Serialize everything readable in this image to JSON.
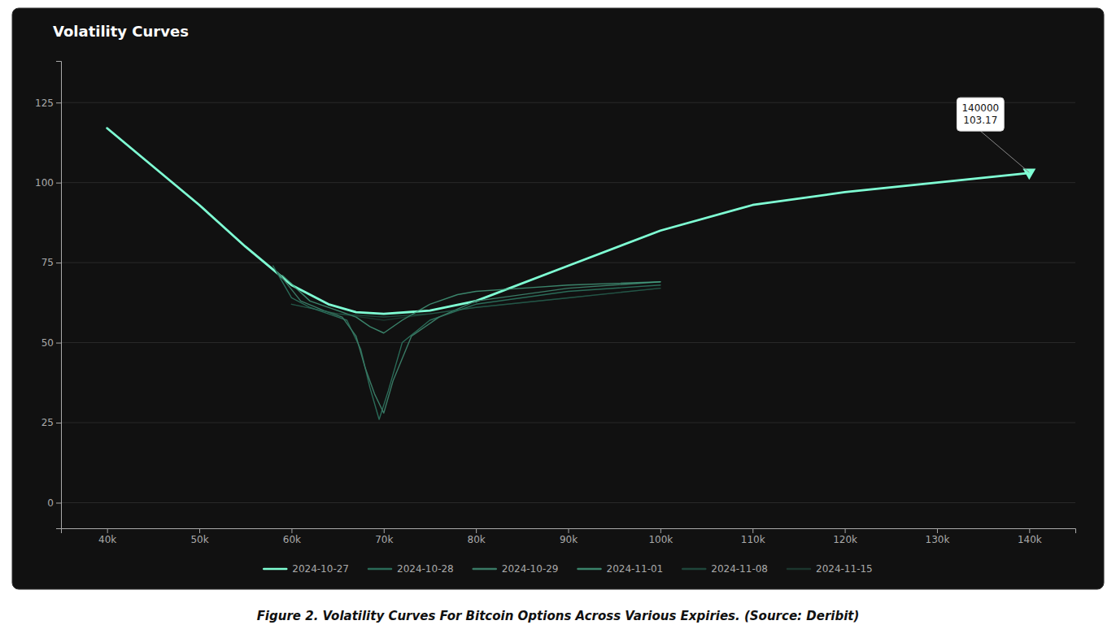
{
  "chart_data": {
    "type": "line",
    "title": "Volatility Curves",
    "caption": "Figure 2. Volatility Curves For Bitcoin Options Across Various Expiries. (Source: Deribit)",
    "xlim": [
      35000,
      145000
    ],
    "ylim": [
      -8,
      138
    ],
    "xticks": [
      {
        "value": 40000,
        "label": "40k"
      },
      {
        "value": 50000,
        "label": "50k"
      },
      {
        "value": 60000,
        "label": "60k"
      },
      {
        "value": 70000,
        "label": "70k"
      },
      {
        "value": 80000,
        "label": "80k"
      },
      {
        "value": 90000,
        "label": "90k"
      },
      {
        "value": 100000,
        "label": "100k"
      },
      {
        "value": 110000,
        "label": "110k"
      },
      {
        "value": 120000,
        "label": "120k"
      },
      {
        "value": 130000,
        "label": "130k"
      },
      {
        "value": 140000,
        "label": "140k"
      }
    ],
    "yticks": [
      0,
      25,
      50,
      75,
      100,
      125
    ],
    "grid": true,
    "legend": "bottom",
    "series": [
      {
        "name": "2024-10-27",
        "color": "#7fffd4",
        "x": [
          40000,
          45000,
          50000,
          55000,
          60000,
          64000,
          67000,
          70000,
          75000,
          80000,
          90000,
          100000,
          110000,
          120000,
          130000,
          140000
        ],
        "values": [
          117,
          105,
          93,
          80,
          68,
          62,
          59.5,
          59,
          60,
          63,
          74,
          85,
          93,
          97,
          100,
          103
        ]
      },
      {
        "name": "2024-10-28",
        "color": "#2a6b58",
        "x": [
          58000,
          60000,
          62000,
          64000,
          66000,
          67500,
          68500,
          69500,
          70500,
          72000,
          75000,
          80000,
          90000,
          100000
        ],
        "values": [
          74,
          64,
          61,
          59,
          57,
          48,
          36,
          26,
          35,
          50,
          57,
          62,
          66,
          68
        ]
      },
      {
        "name": "2024-10-29",
        "color": "#3a7a65",
        "x": [
          58500,
          61000,
          63500,
          65500,
          67000,
          68000,
          69000,
          70000,
          71000,
          73000,
          76000,
          80000,
          90000,
          100000
        ],
        "values": [
          72,
          63,
          60,
          58,
          52,
          42,
          34,
          28,
          38,
          52,
          58,
          63,
          67,
          69
        ]
      },
      {
        "name": "2024-11-01",
        "color": "#4aab8a",
        "x": [
          59000,
          62000,
          65000,
          67000,
          68500,
          70000,
          72000,
          75000,
          78000,
          80000,
          85000,
          90000,
          100000
        ],
        "values": [
          71,
          63,
          60,
          58,
          55,
          53,
          57,
          62,
          65,
          66,
          67,
          68,
          69
        ]
      },
      {
        "name": "2024-11-08",
        "color": "#2a6b58",
        "x": [
          60000,
          65000,
          70000,
          75000,
          80000,
          90000,
          100000
        ],
        "values": [
          62,
          59,
          58,
          59,
          61,
          64,
          67
        ]
      },
      {
        "name": "2024-11-15",
        "color": "#2a6b58",
        "x": [
          60000,
          65000,
          70000,
          75000,
          80000,
          90000,
          100000
        ],
        "values": [
          62,
          59,
          57,
          59,
          61,
          64,
          67
        ]
      }
    ],
    "annotations": [
      {
        "x": 140000,
        "y": 103.17,
        "text": "140000\n103.17",
        "marker": "triangle-down",
        "color": "#7fffd4"
      }
    ]
  }
}
